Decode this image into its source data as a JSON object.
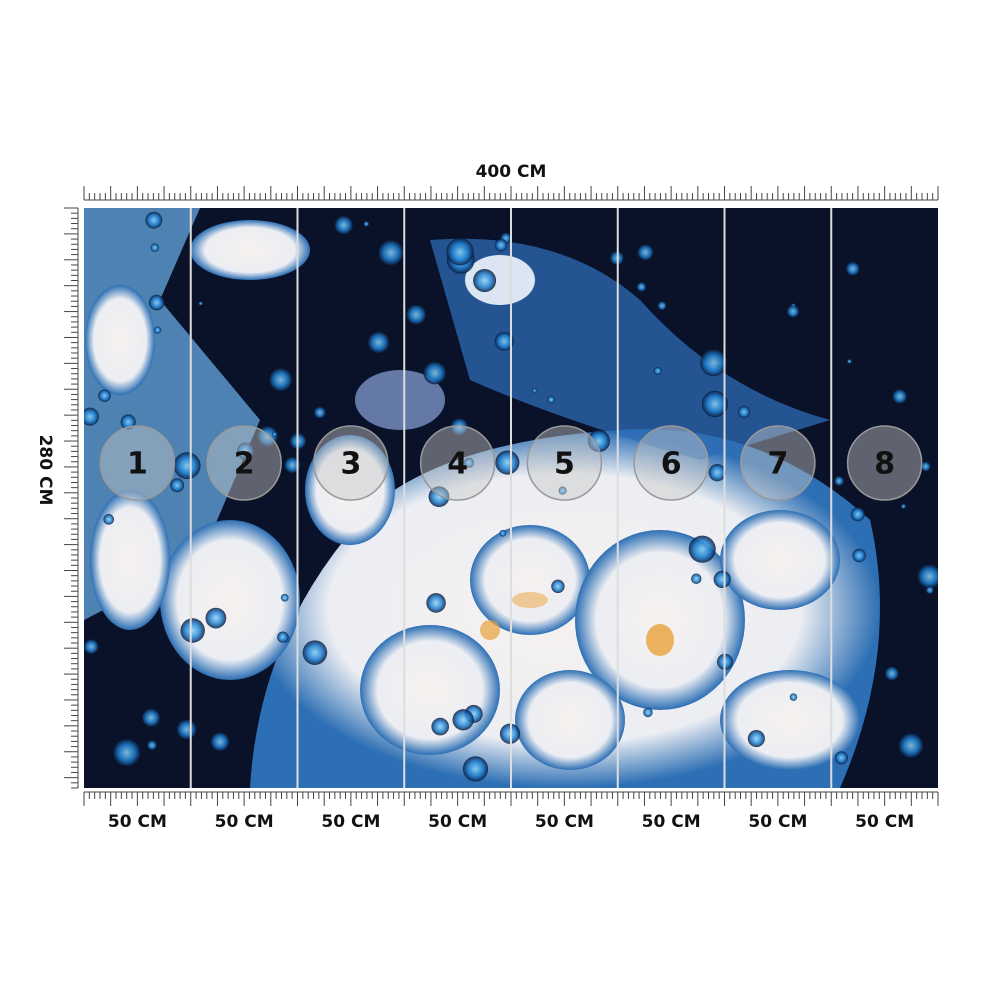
{
  "width_label": "400 CM",
  "height_label": "280 CM",
  "panels": [
    {
      "number": "1",
      "width": "50 CM"
    },
    {
      "number": "2",
      "width": "50 CM"
    },
    {
      "number": "3",
      "width": "50 CM"
    },
    {
      "number": "4",
      "width": "50 CM"
    },
    {
      "number": "5",
      "width": "50 CM"
    },
    {
      "number": "6",
      "width": "50 CM"
    },
    {
      "number": "7",
      "width": "50 CM"
    },
    {
      "number": "8",
      "width": "50 CM"
    }
  ]
}
